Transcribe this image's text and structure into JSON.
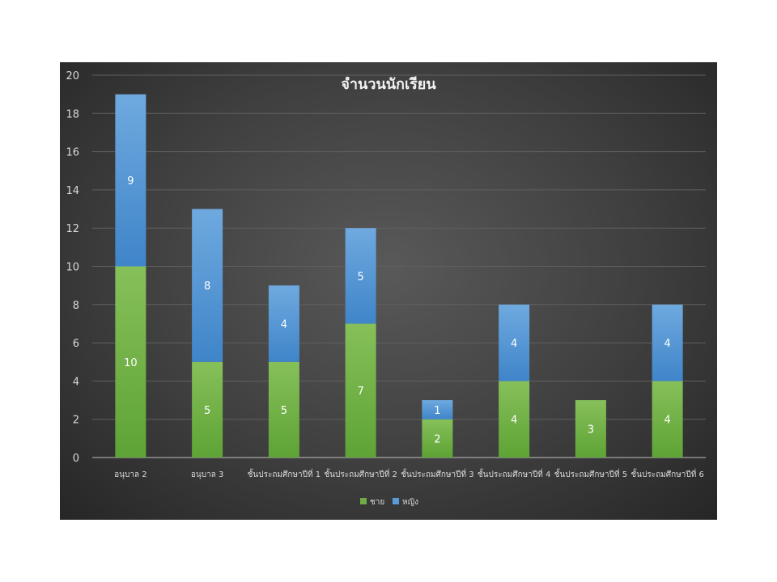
{
  "chart_data": {
    "type": "bar",
    "stacked": true,
    "title": "จำนวนนักเรียน",
    "xlabel": "",
    "ylabel": "",
    "ylim": [
      0,
      20
    ],
    "yticks": [
      "0",
      "2",
      "4",
      "6",
      "8",
      "10",
      "12",
      "14",
      "16",
      "18",
      "20"
    ],
    "grid": true,
    "legend_position": "bottom",
    "categories": [
      "อนุบาล 2",
      "อนุบาล 3",
      "ชั้นประถมศึกษาปีที่ 1",
      "ชั้นประถมศึกษาปีที่ 2",
      "ชั้นประถมศึกษาปีที่ 3",
      "ชั้นประถมศึกษาปีที่ 4",
      "ชั้นประถมศึกษาปีที่ 5",
      "ชั้นประถมศึกษาปีที่ 6"
    ],
    "series": [
      {
        "name": "ชาย",
        "values": [
          10,
          5,
          5,
          7,
          2,
          4,
          3,
          4
        ],
        "color": "#70ad47"
      },
      {
        "name": "หญิง",
        "values": [
          9,
          8,
          4,
          5,
          1,
          4,
          0,
          4
        ],
        "color": "#5b9bd5"
      }
    ]
  }
}
